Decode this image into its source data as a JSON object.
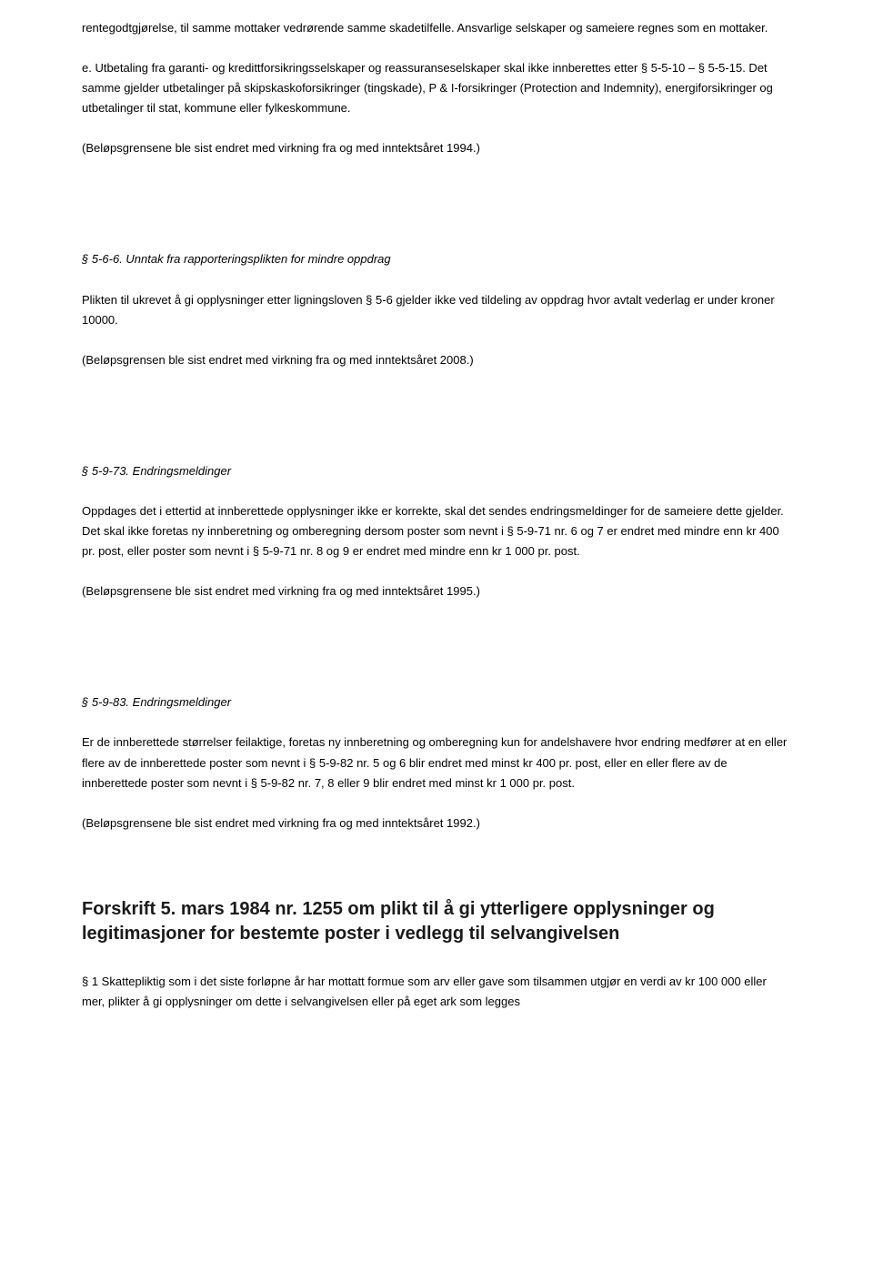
{
  "para1": "rentegodtgjørelse, til samme mottaker vedrørende samme skadetilfelle. Ansvarlige selskaper og sameiere regnes som en mottaker.",
  "para2": "e. Utbetaling fra garanti- og kredittforsikringsselskaper og reassuranseselskaper skal ikke innberettes etter § 5-5-10 – § 5-5-15. Det samme gjelder utbetalinger på skipskaskoforsikringer (tingskade), P & I-forsikringer (Protection and Indemnity), energiforsikringer og utbetalinger til stat, kommune eller fylkeskommune.",
  "para3": "(Beløpsgrensene ble sist endret med virkning fra og med inntektsåret 1994.)",
  "sec566_title": "§ 5-6-6. Unntak fra rapporteringsplikten for mindre oppdrag",
  "sec566_p1": "Plikten til ukrevet å gi opplysninger etter ligningsloven § 5-6 gjelder ikke ved tildeling av oppdrag hvor avtalt vederlag er under kroner 10000.",
  "sec566_p2": "(Beløpsgrensen ble sist endret med virkning fra og med inntektsåret 2008.)",
  "sec5973_title": "§ 5-9-73. Endringsmeldinger",
  "sec5973_p1": "Oppdages det i ettertid at innberettede opplysninger ikke er korrekte, skal det sendes endringsmeldinger for de sameiere dette gjelder. Det skal ikke foretas ny innberetning og omberegning dersom poster som nevnt i § 5-9-71 nr. 6 og 7 er endret med mindre enn kr 400 pr. post, eller poster som nevnt i § 5-9-71 nr. 8 og 9 er endret med mindre enn kr 1 000 pr. post.",
  "sec5973_p2": "(Beløpsgrensene ble sist endret med virkning fra og med inntektsåret 1995.)",
  "sec5983_title": "§ 5-9-83. Endringsmeldinger",
  "sec5983_p1": "Er de innberettede størrelser feilaktige, foretas ny innberetning og omberegning kun for andelshavere hvor endring medfører at en eller flere av de innberettede poster som nevnt i § 5-9-82 nr. 5 og 6 blir endret med minst kr 400 pr. post, eller en eller flere av de innberettede poster som nevnt i § 5-9-82 nr. 7, 8 eller 9 blir endret med minst kr 1 000 pr. post.",
  "sec5983_p2": "(Beløpsgrensene ble sist endret med virkning fra og med inntektsåret 1992.)",
  "heading": "Forskrift 5. mars 1984 nr. 1255 om plikt til å gi ytterligere opplysninger og legitimasjoner for bestemte poster i vedlegg til selvangivelsen",
  "final_p": "§ 1 Skattepliktig som i det siste forløpne år har mottatt formue som arv eller gave som tilsammen utgjør en verdi av kr 100 000 eller mer, plikter å gi opplysninger om dette i selvangivelsen eller på eget ark som legges"
}
